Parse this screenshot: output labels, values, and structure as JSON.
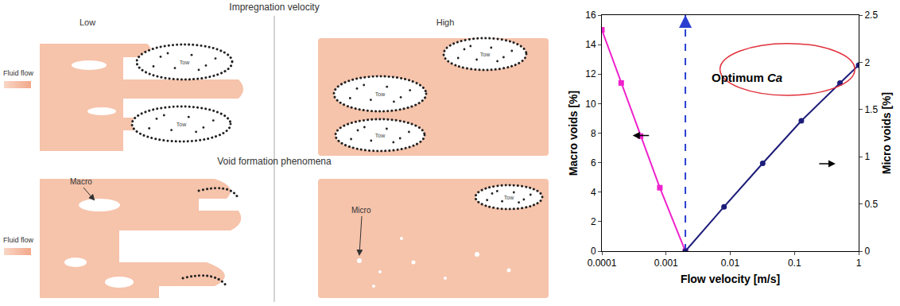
{
  "diagram": {
    "title": "Impregnation velocity",
    "columns": [
      "Low",
      "High"
    ],
    "section": "Void formation phenomena",
    "flow_label": "Fluid flow",
    "tow_label": "Tow",
    "void_labels": [
      "Macro",
      "Micro"
    ]
  },
  "chart_data": {
    "type": "line",
    "x_label": "Flow velocity [m/s]",
    "y_label": "Macro voids [%]",
    "y2_label": "Micro voids [%]",
    "log": "x",
    "grid": false,
    "xlim": [
      0.0001,
      1
    ],
    "xticks": [
      0.0001,
      0.001,
      0.01,
      0.1,
      1
    ],
    "ylim": [
      0,
      16
    ],
    "yticks": [
      0,
      2,
      4,
      6,
      8,
      10,
      12,
      14,
      16
    ],
    "y2lim": [
      0,
      2.5
    ],
    "y2ticks": [
      0,
      0.5,
      1,
      1.5,
      2,
      2.5
    ],
    "series": [
      {
        "axis": "y",
        "color": "#ee22cc",
        "marker": "square",
        "line_style": "solid",
        "x": [
          0.0001,
          0.0002,
          0.0004,
          0.0008,
          0.002
        ],
        "values": [
          15,
          11.4,
          7.8,
          4.3,
          0
        ]
      },
      {
        "axis": "y2",
        "color": "#1c1c7a",
        "marker": "circle",
        "line_style": "solid",
        "x": [
          0.002,
          0.008,
          0.032,
          0.128,
          0.512,
          1
        ],
        "values": [
          0,
          0.47,
          0.93,
          1.38,
          1.78,
          1.97
        ]
      }
    ],
    "annotations": [
      {
        "text": "Optimum Ca",
        "x": 0.002,
        "line_style": "dash",
        "color": "#2a3fd0"
      }
    ]
  }
}
